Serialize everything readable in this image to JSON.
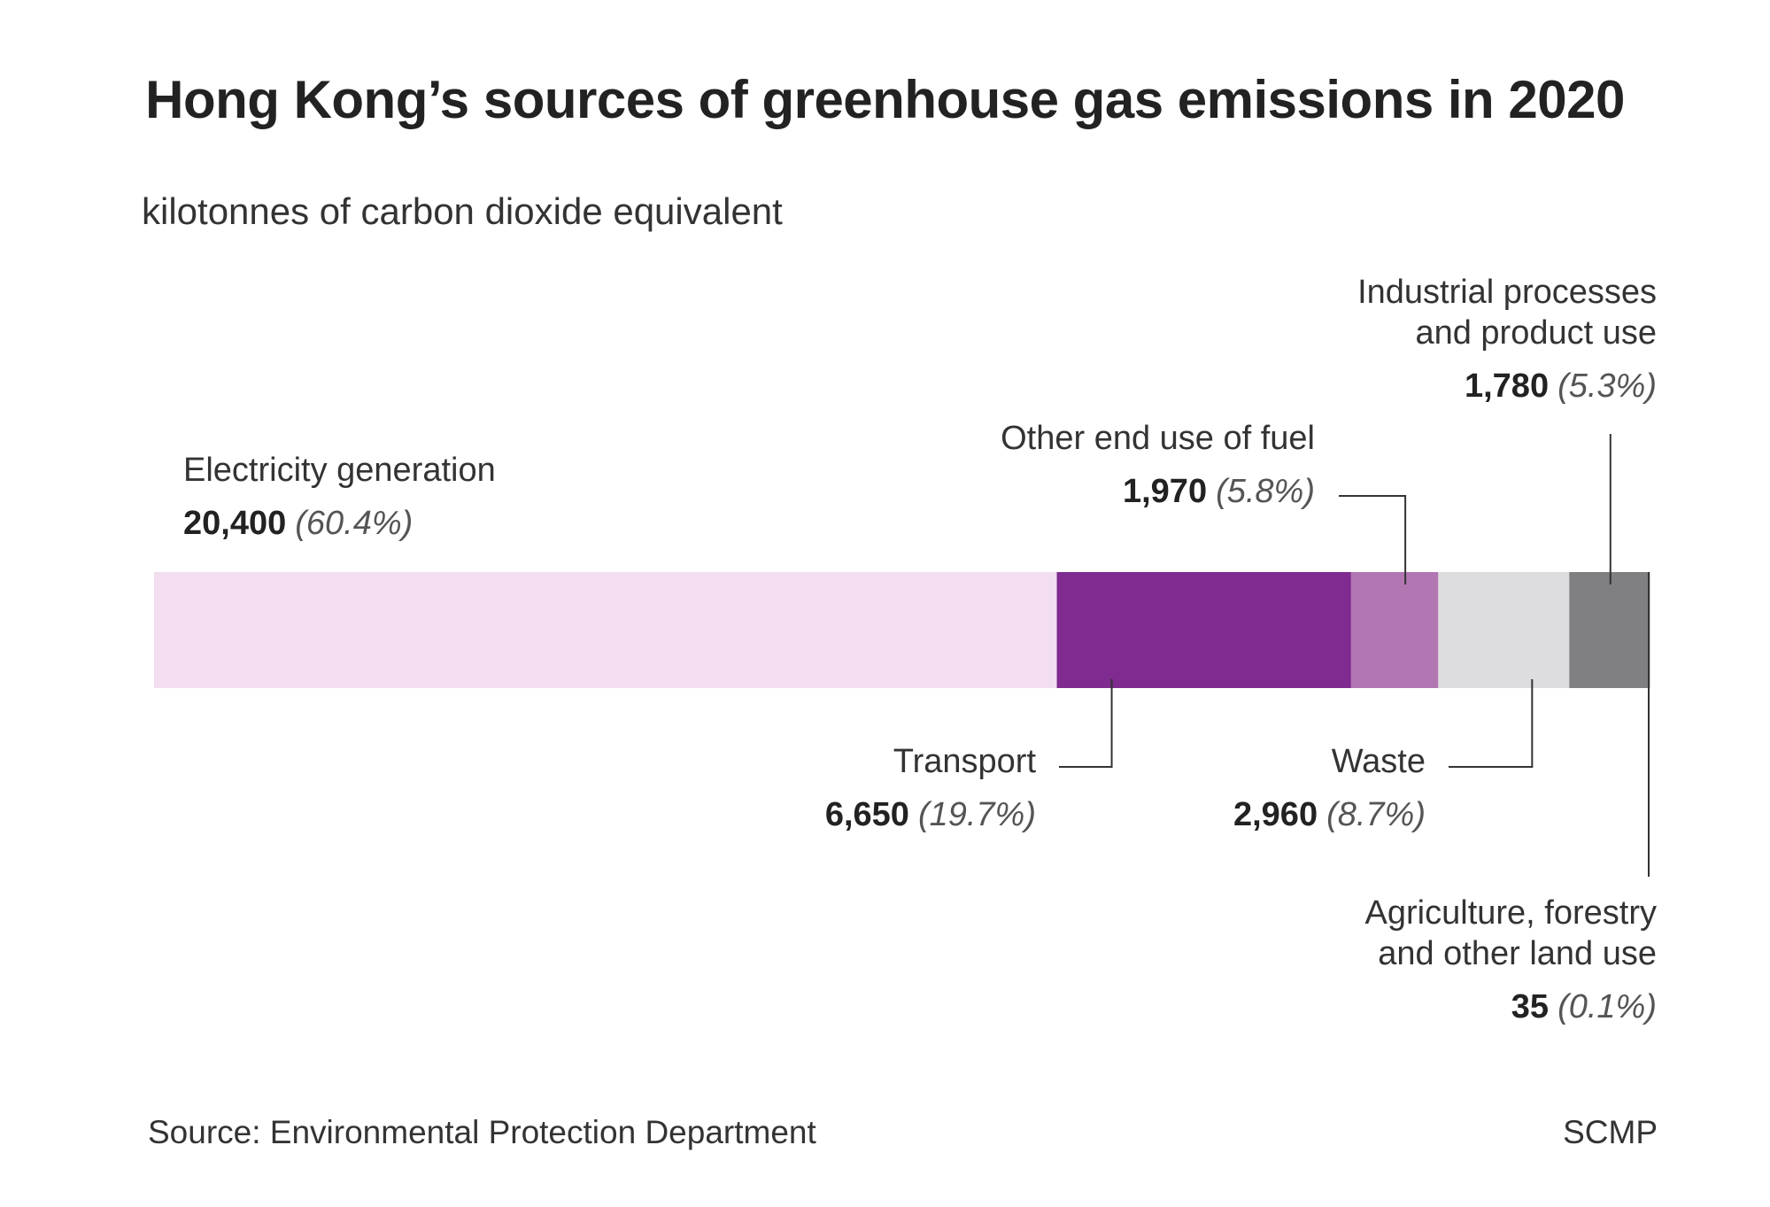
{
  "title": "Hong Kong’s sources of greenhouse gas emissions in 2020",
  "subtitle": "kilotonnes of carbon dioxide equivalent",
  "source": "Source: Environmental Protection Department",
  "credit": "SCMP",
  "chart_data": {
    "type": "bar",
    "orientation": "horizontal-stacked",
    "unit": "kilotonnes of carbon dioxide equivalent",
    "series": [
      {
        "name": "Electricity generation",
        "value": 20400,
        "value_label": "20,400",
        "percent_label": "(60.4%)",
        "color": "#f2deee"
      },
      {
        "name": "Transport",
        "value": 6650,
        "value_label": "6,650",
        "percent_label": "(19.7%)",
        "color": "#7f2b8f"
      },
      {
        "name": "Other end use of fuel",
        "value": 1970,
        "value_label": "1,970",
        "percent_label": "(5.8%)",
        "color": "#b276b3"
      },
      {
        "name": "Waste",
        "value": 2960,
        "value_label": "2,960",
        "percent_label": "(8.7%)",
        "color": "#dddddf"
      },
      {
        "name": "Industrial processes and product use",
        "name_lines": [
          "Industrial processes",
          "and product use"
        ],
        "value": 1780,
        "value_label": "1,780",
        "percent_label": "(5.3%)",
        "color": "#808083"
      },
      {
        "name": "Agriculture, forestry and other land use",
        "name_lines": [
          "Agriculture, forestry",
          "and other land use"
        ],
        "value": 35,
        "value_label": "35",
        "percent_label": "(0.1%)",
        "color": "#333333"
      }
    ]
  }
}
